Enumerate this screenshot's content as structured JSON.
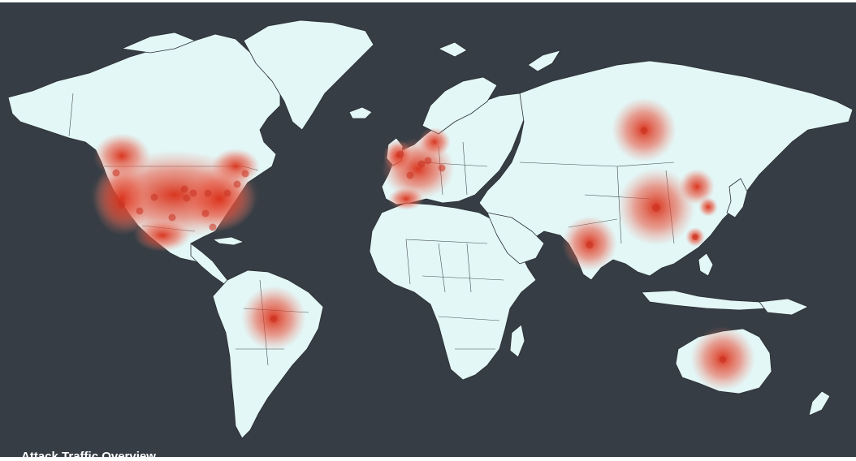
{
  "map": {
    "caption": "Attack Traffic Overview",
    "colors": {
      "ocean": "#363d44",
      "land": "#e3f7f7",
      "border": "#2b2f33",
      "heat": "#d92d15",
      "dot": "#c83220"
    },
    "hotspots": [
      {
        "region": "United States",
        "intensity": 0.95
      },
      {
        "region": "Western Europe",
        "intensity": 0.9
      },
      {
        "region": "China",
        "intensity": 0.85
      },
      {
        "region": "Russia",
        "intensity": 0.55
      },
      {
        "region": "India",
        "intensity": 0.45
      },
      {
        "region": "Brazil",
        "intensity": 0.45
      },
      {
        "region": "Australia",
        "intensity": 0.45
      },
      {
        "region": "Taiwan",
        "intensity": 0.6
      },
      {
        "region": "South Korea",
        "intensity": 0.5
      }
    ]
  }
}
